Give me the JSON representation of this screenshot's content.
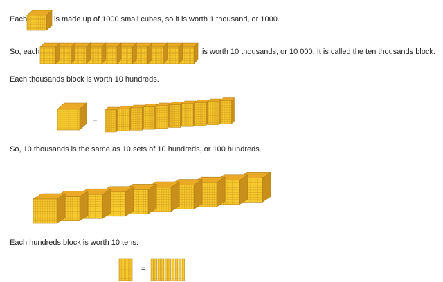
{
  "colors": {
    "front": "#f5cb2e",
    "top": "#ebaa26",
    "side": "#c98f1b",
    "grid": "#d79b20",
    "edge": "#b07d14",
    "text": "#222222"
  },
  "line1": {
    "before": "Each",
    "after": "is made up of 1000 small cubes, so it is worth 1 thousand, or 1000."
  },
  "line2": {
    "before": "So, each",
    "after": "is worth 10 thousands, or 10 000. It is called the ten thousands block."
  },
  "line3": {
    "text": "Each thousands block is worth 10 hundreds."
  },
  "equation1": {
    "equals": "="
  },
  "line4": {
    "text": "So, 10 thousands is the same as 10 sets of 10 hundreds, or 100 hundreds."
  },
  "line5": {
    "text": "Each hundreds block is worth 10 tens."
  },
  "equation2": {
    "equals": "="
  },
  "counts": {
    "cubes_in_ten_thousands_block": 10,
    "flats_in_thousand": 10,
    "cubes_in_long_row": 10,
    "rods_in_hundred": 10
  }
}
